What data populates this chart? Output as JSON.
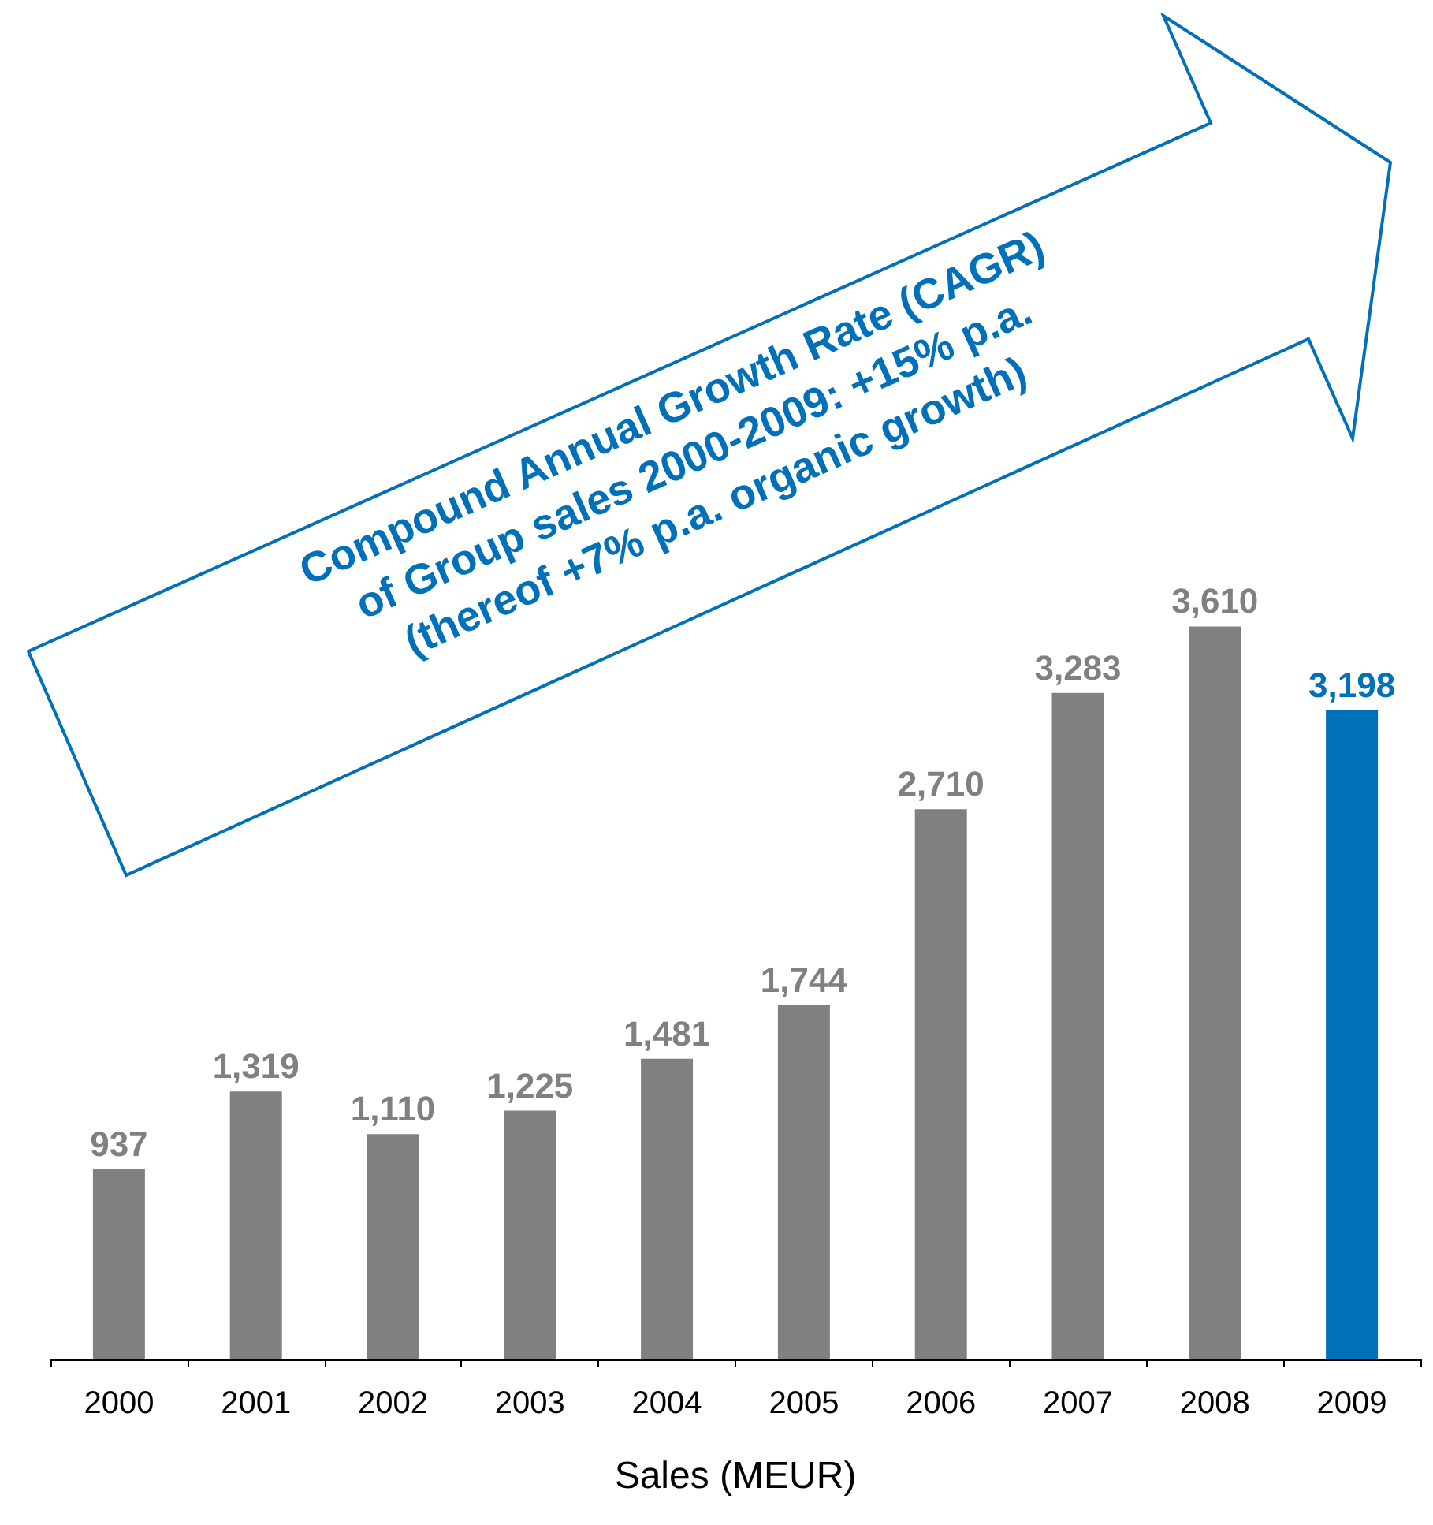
{
  "chart_data": {
    "type": "bar",
    "xlabel": "Sales (MEUR)",
    "categories": [
      "2000",
      "2001",
      "2002",
      "2003",
      "2004",
      "2005",
      "2006",
      "2007",
      "2008",
      "2009"
    ],
    "values": [
      937,
      1319,
      1110,
      1225,
      1481,
      1744,
      2710,
      3283,
      3610,
      3198
    ],
    "colors": [
      "#808080",
      "#808080",
      "#808080",
      "#808080",
      "#808080",
      "#808080",
      "#808080",
      "#808080",
      "#808080",
      "#0070b8"
    ],
    "value_labels": [
      "937",
      "1,319",
      "1,110",
      "1,225",
      "1,481",
      "1,744",
      "2,710",
      "3,283",
      "3,610",
      "3,198"
    ],
    "annotations": [
      "Compound Annual Growth Rate (CAGR)",
      "of Group sales 2000-2009: +15% p.a.",
      "(thereof +7% p.a. organic growth)"
    ]
  }
}
